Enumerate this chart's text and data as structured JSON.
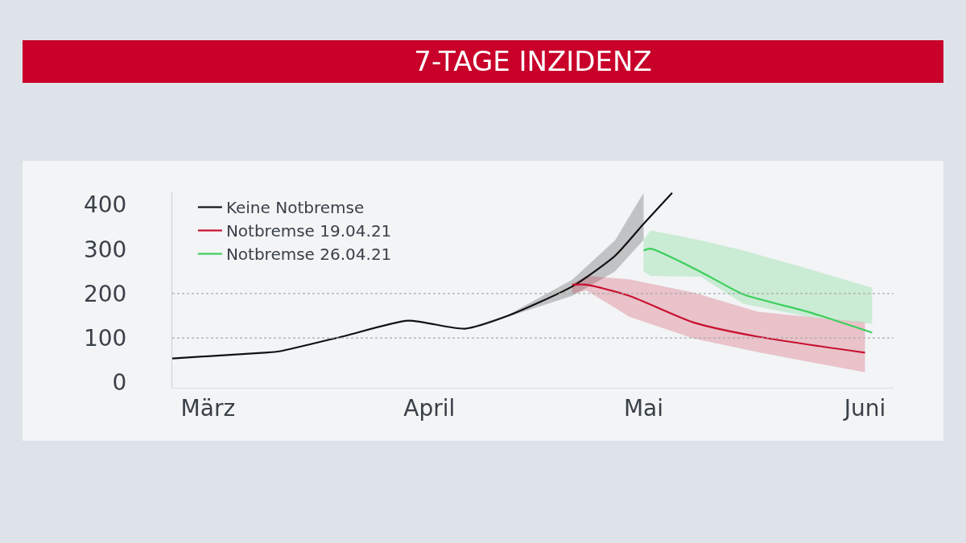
{
  "chart_data": {
    "type": "line",
    "title": "7-TAGE INZIDENZ",
    "series": [
      {
        "name": "Keine Notbremse",
        "color": "#111111",
        "x": [
          "--02-24",
          "--03-09",
          "--03-11",
          "--03-20",
          "--03-29",
          "--04-06",
          "--04-12",
          "--04-21",
          "--04-27",
          "--05-01",
          "--05-05"
        ],
        "values": [
          54,
          67,
          70,
          104,
          139,
          121,
          150,
          216,
          285,
          357,
          427
        ],
        "lower": [
          54,
          67,
          70,
          104,
          139,
          121,
          148,
          195,
          250,
          321,
          null
        ],
        "upper": [
          54,
          67,
          70,
          104,
          139,
          121,
          152,
          231,
          320,
          427,
          null
        ]
      },
      {
        "name": "Notbremse 19.04.21",
        "color": "#c8102e",
        "x": [
          "--04-21",
          "--04-23",
          "--04-29",
          "--05-08",
          "--05-17",
          "--06-01"
        ],
        "values": [
          220,
          220,
          195,
          135,
          103,
          67
        ],
        "lower": [
          200,
          207,
          148,
          99,
          68,
          23
        ],
        "upper": [
          222,
          240,
          232,
          202,
          159,
          135
        ]
      },
      {
        "name": "Notbremse 26.04.21",
        "color": "#3ccf5c",
        "x": [
          "--05-01",
          "--05-02",
          "--05-09",
          "--05-15",
          "--05-24",
          "--06-02"
        ],
        "values": [
          297,
          301,
          249,
          198,
          159,
          112
        ],
        "lower": [
          250,
          240,
          238,
          177,
          148,
          132
        ],
        "upper": [
          321,
          342,
          320,
          297,
          256,
          213
        ]
      }
    ],
    "xlim": [
      "--02-24",
      "--06-05"
    ],
    "xticks": [
      {
        "value": "--03-01",
        "label": "März"
      },
      {
        "value": "--04-01",
        "label": "April"
      },
      {
        "value": "--05-01",
        "label": "Mai"
      },
      {
        "value": "--06-01",
        "label": "Juni"
      }
    ],
    "ylim": [
      -12,
      430
    ],
    "yticks": [
      0,
      100,
      200,
      300,
      400
    ],
    "ref_lines": [
      {
        "axis": "y",
        "value": 100,
        "color": "#aaaaaa",
        "line_style": "dotted"
      },
      {
        "axis": "y",
        "value": 200,
        "color": "#aaaaaa",
        "line_style": "dotted"
      }
    ],
    "grid": false,
    "legend": "top left",
    "marker": "none",
    "line_style": "solid"
  }
}
